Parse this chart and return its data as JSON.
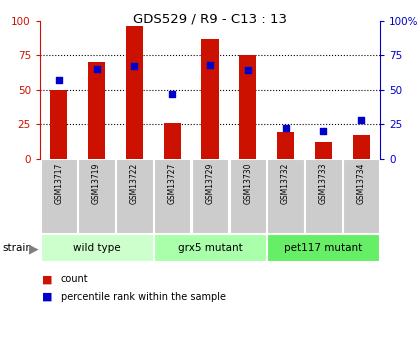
{
  "title": "GDS529 / R9 - C13 : 13",
  "samples": [
    "GSM13717",
    "GSM13719",
    "GSM13722",
    "GSM13727",
    "GSM13729",
    "GSM13730",
    "GSM13732",
    "GSM13733",
    "GSM13734"
  ],
  "counts": [
    50,
    70,
    96,
    26,
    87,
    75,
    19,
    12,
    17
  ],
  "percentiles": [
    57,
    65,
    67,
    47,
    68,
    64,
    22,
    20,
    28
  ],
  "groups": [
    {
      "label": "wild type",
      "start": 0,
      "end": 3,
      "color": "#ccffcc"
    },
    {
      "label": "grx5 mutant",
      "start": 3,
      "end": 6,
      "color": "#aaffaa"
    },
    {
      "label": "pet117 mutant",
      "start": 6,
      "end": 9,
      "color": "#66ee66"
    }
  ],
  "bar_color": "#cc1100",
  "dot_color": "#0000cc",
  "left_axis_color": "#cc1100",
  "right_axis_color": "#0000cc",
  "ylim": [
    0,
    100
  ],
  "yticks": [
    0,
    25,
    50,
    75,
    100
  ],
  "grid_color": "#000000",
  "label_bg_color": "#cccccc",
  "strain_label": "strain",
  "legend_count": "count",
  "legend_percentile": "percentile rank within the sample"
}
